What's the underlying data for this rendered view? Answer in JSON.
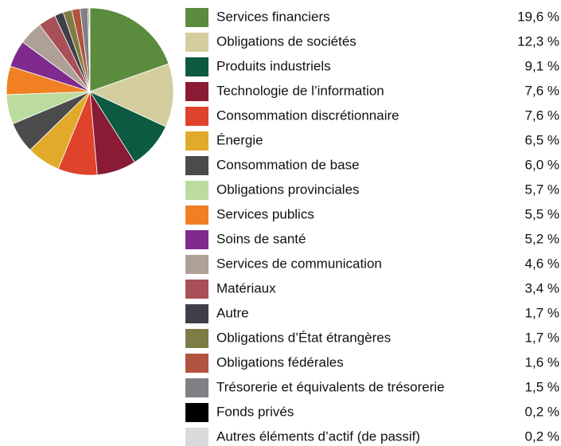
{
  "chart_data": {
    "type": "pie",
    "categories": [
      "Services financiers",
      "Obligations de sociétés",
      "Produits industriels",
      "Technologie de l’information",
      "Consommation discrétionnaire",
      "Énergie",
      "Consommation de base",
      "Obligations provinciales",
      "Services publics",
      "Soins de santé",
      "Services de communication",
      "Matériaux",
      "Autre",
      "Obligations d’État étrangères",
      "Obligations fédérales",
      "Trésorerie et équivalents de trésorerie",
      "Fonds privés",
      "Autres éléments d’actif (de passif)"
    ],
    "values": [
      19.6,
      12.3,
      9.1,
      7.6,
      7.6,
      6.5,
      6.0,
      5.7,
      5.5,
      5.2,
      4.6,
      3.4,
      1.7,
      1.7,
      1.6,
      1.5,
      0.2,
      0.2
    ],
    "value_labels": [
      "19,6 %",
      "12,3 %",
      "9,1 %",
      "7,6 %",
      "7,6 %",
      "6,5 %",
      "6,0 %",
      "5,7 %",
      "5,5 %",
      "5,2 %",
      "4,6 %",
      "3,4 %",
      "1,7 %",
      "1,7 %",
      "1,6 %",
      "1,5 %",
      "0,2 %",
      "0,2 %"
    ],
    "colors": [
      "#5b8b3d",
      "#d4cd9d",
      "#0b5a41",
      "#8a1b35",
      "#e0432b",
      "#e2aa2b",
      "#4b4b4b",
      "#bbdc9d",
      "#f08023",
      "#7f2b8d",
      "#afa095",
      "#a94f58",
      "#3f3f47",
      "#7e7b46",
      "#b1543f",
      "#808186",
      "#000000",
      "#d9dadc"
    ]
  }
}
